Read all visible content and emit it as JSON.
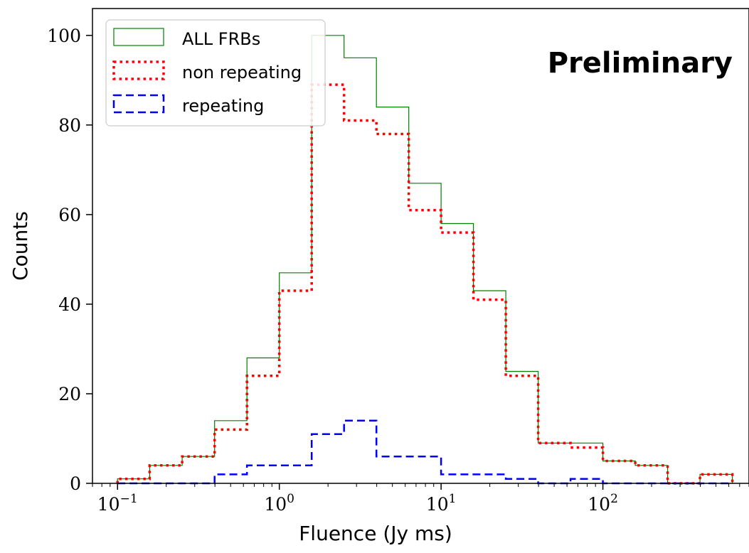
{
  "chart_data": {
    "type": "histogram",
    "scale": {
      "x": "log",
      "y": "linear"
    },
    "xlabel": "Fluence (Jy ms)",
    "ylabel": "Counts",
    "xlim": [
      0.07,
      800
    ],
    "ylim": [
      0,
      106
    ],
    "x_ticks": [
      {
        "value": 0.1,
        "base": "10",
        "exp": "−1"
      },
      {
        "value": 1,
        "base": "10",
        "exp": "0"
      },
      {
        "value": 10,
        "base": "10",
        "exp": "1"
      },
      {
        "value": 100,
        "base": "10",
        "exp": "2"
      }
    ],
    "y_ticks": [
      0,
      20,
      40,
      60,
      80,
      100
    ],
    "annotation": "Preliminary",
    "legend_position": "upper left",
    "bin_edges": [
      0.1,
      0.158,
      0.251,
      0.398,
      0.631,
      1.0,
      1.585,
      2.512,
      3.981,
      6.31,
      10.0,
      15.85,
      25.12,
      39.81,
      63.1,
      100.0,
      158.5,
      251.2,
      398.1,
      631.0
    ],
    "series": [
      {
        "name": "ALL FRBs",
        "color": "#008000",
        "style": "solid",
        "counts": [
          1,
          4,
          6,
          14,
          28,
          47,
          100,
          95,
          84,
          67,
          58,
          43,
          25,
          9,
          9,
          5,
          4,
          0,
          2
        ]
      },
      {
        "name": "non repeating",
        "color": "#ff0000",
        "style": "dotted",
        "counts": [
          1,
          4,
          6,
          12,
          24,
          43,
          89,
          81,
          78,
          61,
          56,
          41,
          24,
          9,
          8,
          5,
          4,
          0,
          2
        ]
      },
      {
        "name": "repeating",
        "color": "#0000ff",
        "style": "dashed",
        "counts": [
          0,
          0,
          0,
          2,
          4,
          4,
          11,
          14,
          6,
          6,
          2,
          2,
          1,
          0,
          1,
          0,
          0,
          0,
          0
        ]
      }
    ]
  }
}
